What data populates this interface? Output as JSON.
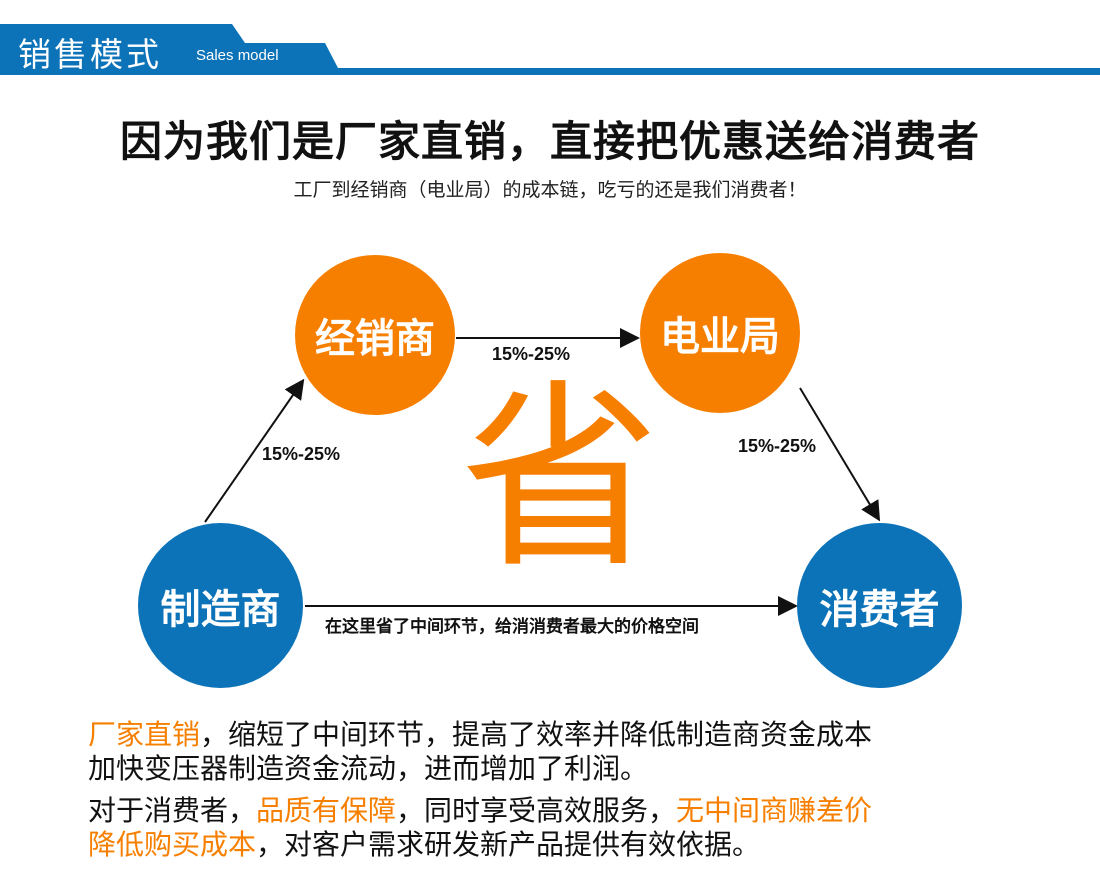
{
  "header": {
    "title": "销售模式",
    "subtitle": "Sales model",
    "color": "#0d73b8"
  },
  "main_title": "因为我们是厂家直销，直接把优惠送给消费者",
  "subtitle": "工厂到经销商（电业局）的成本链，吃亏的还是我们消费者！",
  "diagram": {
    "nodes": {
      "dealer": "经销商",
      "power_bureau": "电业局",
      "manufacturer": "制造商",
      "consumer": "消费者"
    },
    "edges": {
      "manufacturer_to_dealer": "15%-25%",
      "dealer_to_bureau": "15%-25%",
      "bureau_to_consumer": "15%-25%",
      "manufacturer_to_consumer": "在这里省了中间环节，给消消费者最大的价格空间"
    },
    "center_char": "省",
    "colors": {
      "orange": "#f77f00",
      "blue": "#0d73b8"
    }
  },
  "paragraph1": {
    "highlight1": "厂家直销",
    "line1_rest": "，缩短了中间环节，提高了效率并降低制造商资金成本",
    "line2": "加快变压器制造资金流动，进而增加了利润。"
  },
  "paragraph2": {
    "t1": "对于消费者，",
    "h1": "品质有保障",
    "t2": "，同时享受高效服务，",
    "h2": "无中间商赚差价",
    "h3": "降低购买成本",
    "t3": "，对客户需求研发新产品提供有效依据。"
  }
}
